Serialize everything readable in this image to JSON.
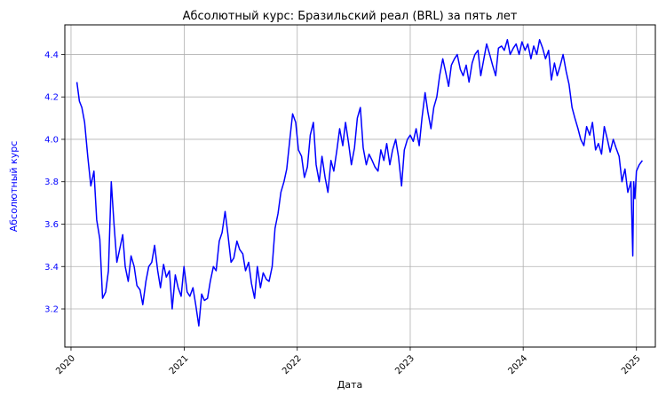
{
  "chart_data": {
    "type": "line",
    "title": "Абсолютный курс: Бразильский реал (BRL) за пять лет",
    "xlabel": "Дата",
    "ylabel": "Абсолютный курс",
    "xlim": [
      "2019-12-12",
      "2025-03-03"
    ],
    "ylim": [
      3.02,
      4.54
    ],
    "x_ticks": [
      "2020",
      "2021",
      "2022",
      "2023",
      "2024",
      "2025"
    ],
    "x_tick_dates": [
      "2020-01-01",
      "2021-01-01",
      "2022-01-01",
      "2023-01-01",
      "2024-01-01",
      "2025-01-01"
    ],
    "y_ticks": [
      "3.2",
      "3.4",
      "3.6",
      "3.8",
      "4.0",
      "4.2",
      "4.4"
    ],
    "grid": true,
    "colors": {
      "line": "#0000ff",
      "ylabel": "#0000ff",
      "yticks": "#0000ff",
      "grid": "#b0b0b0",
      "axes": "#000000"
    },
    "series": [
      {
        "x": [
          "2020-01-20",
          "2020-01-28",
          "2020-02-05",
          "2020-02-14",
          "2020-02-24",
          "2020-03-05",
          "2020-03-15",
          "2020-03-24",
          "2020-04-03",
          "2020-04-12",
          "2020-04-22",
          "2020-05-01",
          "2020-05-10",
          "2020-05-19",
          "2020-05-28",
          "2020-06-06",
          "2020-06-16",
          "2020-06-24",
          "2020-07-04",
          "2020-07-13",
          "2020-07-23",
          "2020-08-01",
          "2020-08-11",
          "2020-08-20",
          "2020-08-30",
          "2020-09-08",
          "2020-09-18",
          "2020-09-27",
          "2020-10-07",
          "2020-10-16",
          "2020-10-26",
          "2020-11-04",
          "2020-11-14",
          "2020-11-23",
          "2020-12-03",
          "2020-12-12",
          "2020-12-22",
          "2020-12-31",
          "2021-01-10",
          "2021-01-19",
          "2021-01-29",
          "2021-02-07",
          "2021-02-17",
          "2021-02-26",
          "2021-03-07",
          "2021-03-17",
          "2021-03-26",
          "2021-04-05",
          "2021-04-14",
          "2021-04-24",
          "2021-05-03",
          "2021-05-13",
          "2021-05-22",
          "2021-06-01",
          "2021-06-10",
          "2021-06-20",
          "2021-06-29",
          "2021-07-09",
          "2021-07-18",
          "2021-07-28",
          "2021-08-06",
          "2021-08-16",
          "2021-08-25",
          "2021-09-04",
          "2021-09-13",
          "2021-09-23",
          "2021-10-02",
          "2021-10-12",
          "2021-10-21",
          "2021-10-31",
          "2021-11-09",
          "2021-11-19",
          "2021-11-28",
          "2021-12-08",
          "2021-12-17",
          "2021-12-27",
          "2022-01-05",
          "2022-01-15",
          "2022-01-24",
          "2022-02-03",
          "2022-02-12",
          "2022-02-22",
          "2022-03-03",
          "2022-03-13",
          "2022-03-22",
          "2022-04-01",
          "2022-04-10",
          "2022-04-20",
          "2022-04-29",
          "2022-05-09",
          "2022-05-18",
          "2022-05-28",
          "2022-06-06",
          "2022-06-16",
          "2022-06-25",
          "2022-07-05",
          "2022-07-14",
          "2022-07-24",
          "2022-08-02",
          "2022-08-12",
          "2022-08-21",
          "2022-08-31",
          "2022-09-09",
          "2022-09-19",
          "2022-09-28",
          "2022-10-08",
          "2022-10-17",
          "2022-10-27",
          "2022-11-05",
          "2022-11-15",
          "2022-11-24",
          "2022-12-04",
          "2022-12-13",
          "2022-12-23",
          "2023-01-01",
          "2023-01-11",
          "2023-01-20",
          "2023-01-30",
          "2023-02-08",
          "2023-02-18",
          "2023-02-27",
          "2023-03-09",
          "2023-03-18",
          "2023-03-28",
          "2023-04-06",
          "2023-04-16",
          "2023-04-25",
          "2023-05-05",
          "2023-05-14",
          "2023-05-24",
          "2023-06-02",
          "2023-06-12",
          "2023-06-21",
          "2023-07-01",
          "2023-07-10",
          "2023-07-20",
          "2023-07-29",
          "2023-08-08",
          "2023-08-17",
          "2023-08-27",
          "2023-09-05",
          "2023-09-15",
          "2023-09-24",
          "2023-10-04",
          "2023-10-13",
          "2023-10-23",
          "2023-11-01",
          "2023-11-11",
          "2023-11-20",
          "2023-11-30",
          "2023-12-09",
          "2023-12-19",
          "2023-12-28",
          "2024-01-07",
          "2024-01-16",
          "2024-01-26",
          "2024-02-04",
          "2024-02-14",
          "2024-02-23",
          "2024-03-04",
          "2024-03-13",
          "2024-03-23",
          "2024-04-01",
          "2024-04-11",
          "2024-04-20",
          "2024-04-30",
          "2024-05-09",
          "2024-05-19",
          "2024-05-28",
          "2024-06-07",
          "2024-06-16",
          "2024-06-26",
          "2024-07-05",
          "2024-07-15",
          "2024-07-24",
          "2024-08-03",
          "2024-08-12",
          "2024-08-22",
          "2024-08-31",
          "2024-09-10",
          "2024-09-19",
          "2024-09-29",
          "2024-10-08",
          "2024-10-18",
          "2024-10-27",
          "2024-11-06",
          "2024-11-15",
          "2024-11-25",
          "2024-12-04",
          "2024-12-14",
          "2024-12-20",
          "2024-12-23",
          "2024-12-27",
          "2025-01-01",
          "2025-01-10",
          "2025-01-20"
        ],
        "y": [
          4.27,
          4.18,
          4.15,
          4.08,
          3.92,
          3.78,
          3.85,
          3.62,
          3.53,
          3.25,
          3.28,
          3.38,
          3.8,
          3.6,
          3.42,
          3.48,
          3.55,
          3.4,
          3.33,
          3.45,
          3.4,
          3.31,
          3.29,
          3.22,
          3.33,
          3.4,
          3.42,
          3.5,
          3.38,
          3.3,
          3.41,
          3.35,
          3.38,
          3.2,
          3.36,
          3.3,
          3.26,
          3.4,
          3.28,
          3.26,
          3.3,
          3.22,
          3.12,
          3.27,
          3.24,
          3.25,
          3.33,
          3.4,
          3.38,
          3.52,
          3.56,
          3.66,
          3.55,
          3.42,
          3.44,
          3.52,
          3.48,
          3.46,
          3.38,
          3.42,
          3.32,
          3.25,
          3.4,
          3.3,
          3.37,
          3.34,
          3.33,
          3.4,
          3.58,
          3.65,
          3.75,
          3.8,
          3.86,
          4.0,
          4.12,
          4.08,
          3.95,
          3.92,
          3.82,
          3.87,
          4.02,
          4.08,
          3.88,
          3.8,
          3.92,
          3.82,
          3.75,
          3.9,
          3.85,
          3.95,
          4.05,
          3.97,
          4.08,
          3.98,
          3.88,
          3.96,
          4.1,
          4.15,
          3.96,
          3.88,
          3.93,
          3.9,
          3.87,
          3.85,
          3.95,
          3.9,
          3.98,
          3.88,
          3.95,
          4.0,
          3.92,
          3.78,
          3.95,
          4.0,
          4.02,
          3.99,
          4.05,
          3.97,
          4.1,
          4.22,
          4.13,
          4.05,
          4.15,
          4.2,
          4.3,
          4.38,
          4.32,
          4.25,
          4.35,
          4.38,
          4.4,
          4.33,
          4.3,
          4.35,
          4.27,
          4.36,
          4.4,
          4.42,
          4.3,
          4.38,
          4.45,
          4.4,
          4.35,
          4.3,
          4.43,
          4.44,
          4.42,
          4.47,
          4.4,
          4.43,
          4.45,
          4.4,
          4.46,
          4.42,
          4.45,
          4.38,
          4.44,
          4.4,
          4.47,
          4.43,
          4.38,
          4.42,
          4.28,
          4.36,
          4.3,
          4.35,
          4.4,
          4.32,
          4.26,
          4.15,
          4.1,
          4.05,
          4.0,
          3.97,
          4.06,
          4.02,
          4.08,
          3.95,
          3.98,
          3.93,
          4.06,
          4.0,
          3.94,
          4.0,
          3.96,
          3.92,
          3.8,
          3.86,
          3.75,
          3.8,
          3.45,
          3.8,
          3.72,
          3.85,
          3.88,
          3.9
        ]
      }
    ]
  }
}
